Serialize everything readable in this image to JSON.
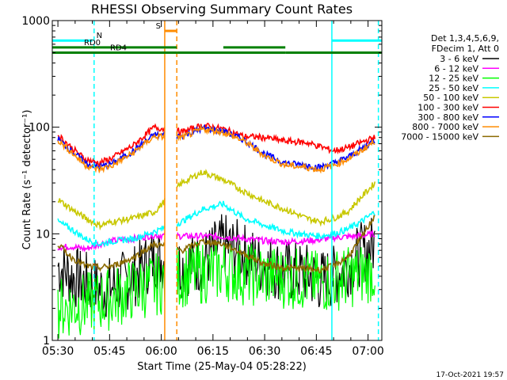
{
  "chart_data": {
    "type": "line",
    "title": "RHESSI Observing Summary Count Rates",
    "xlabel": "Start Time (25-May-04 05:28:22)",
    "ylabel": "Count Rate (s⁻¹ detector⁻¹)",
    "y_scale": "log",
    "ylim": [
      1,
      1000
    ],
    "xlim": [
      -1.63,
      94.0
    ],
    "x_units": "minutes since 05:30",
    "x_ticks": [
      {
        "value": 0,
        "label": "05:30"
      },
      {
        "value": 15,
        "label": "05:45"
      },
      {
        "value": 30,
        "label": "06:00"
      },
      {
        "value": 45,
        "label": "06:15"
      },
      {
        "value": 60,
        "label": "06:30"
      },
      {
        "value": 75,
        "label": "06:45"
      },
      {
        "value": 90,
        "label": "07:00"
      }
    ],
    "y_ticks": [
      {
        "value": 1,
        "label": "1"
      },
      {
        "value": 10,
        "label": "10"
      },
      {
        "value": 100,
        "label": "100"
      },
      {
        "value": 1000,
        "label": "1000"
      }
    ],
    "legend": {
      "position": "right",
      "header": [
        "Det 1,3,4,5,6,9,",
        "FDecim 1, Att 0"
      ]
    },
    "series": [
      {
        "name": "3 - 6 keV",
        "color": "#000000",
        "x": [
          0,
          4,
          8,
          12,
          16,
          22,
          28,
          36,
          42,
          48,
          54,
          60,
          66,
          72,
          76,
          80,
          84,
          88,
          92
        ],
        "y": [
          5,
          4,
          3.5,
          3,
          3.2,
          4,
          6,
          5,
          5.5,
          8,
          6.5,
          5,
          4.5,
          4.2,
          3.6,
          4,
          5,
          6.5,
          8
        ]
      },
      {
        "name": "6 - 12 keV",
        "color": "#ff00ff",
        "x": [
          0,
          4,
          8,
          12,
          16,
          22,
          28,
          36,
          42,
          48,
          54,
          60,
          66,
          72,
          76,
          80,
          84,
          88,
          92
        ],
        "y": [
          7.5,
          7.6,
          7.2,
          8,
          8.6,
          9,
          9.7,
          9.5,
          9.5,
          9.4,
          9,
          8.6,
          8.4,
          8.6,
          8.8,
          9.2,
          9.4,
          9.6,
          10
        ]
      },
      {
        "name": "12 - 25 keV",
        "color": "#00ff00",
        "x": [
          0,
          4,
          8,
          12,
          16,
          22,
          28,
          36,
          42,
          48,
          54,
          60,
          66,
          72,
          76,
          80,
          84,
          88,
          92
        ],
        "y": [
          2,
          2.1,
          2.2,
          2.3,
          2.5,
          3,
          3.3,
          4,
          4.3,
          4.6,
          4.2,
          4,
          3.9,
          3.7,
          3.5,
          3.7,
          3.9,
          4.2,
          4.5
        ]
      },
      {
        "name": "25 - 50 keV",
        "color": "#00ffff",
        "x": [
          0,
          4,
          8,
          12,
          16,
          22,
          28,
          36,
          42,
          48,
          54,
          60,
          66,
          72,
          76,
          80,
          84,
          88,
          92
        ],
        "y": [
          13,
          11,
          9,
          8,
          8.5,
          9,
          10.5,
          13,
          17,
          19,
          14,
          12,
          10.5,
          9.8,
          9.5,
          10,
          11,
          13,
          16
        ]
      },
      {
        "name": "50 - 100 keV",
        "color": "#c8c800",
        "x": [
          0,
          4,
          8,
          12,
          16,
          22,
          28,
          36,
          42,
          48,
          54,
          60,
          66,
          72,
          76,
          80,
          84,
          88,
          92
        ],
        "y": [
          21,
          17,
          14,
          12,
          13,
          14,
          16,
          30,
          38,
          32,
          25,
          20,
          17,
          14,
          13,
          14,
          16,
          22,
          30
        ]
      },
      {
        "name": "100 - 300 keV",
        "color": "#ff0000",
        "x": [
          0,
          4,
          8,
          12,
          16,
          22,
          28,
          36,
          42,
          48,
          54,
          60,
          66,
          72,
          76,
          80,
          84,
          88,
          92
        ],
        "y": [
          85,
          64,
          50,
          46,
          52,
          68,
          100,
          90,
          104,
          96,
          82,
          80,
          74,
          72,
          66,
          60,
          64,
          72,
          80
        ]
      },
      {
        "name": "300 - 800 keV",
        "color": "#0000ff",
        "x": [
          0,
          4,
          8,
          12,
          16,
          22,
          28,
          36,
          42,
          48,
          54,
          60,
          66,
          72,
          76,
          80,
          84,
          88,
          92
        ],
        "y": [
          78,
          60,
          46,
          42,
          46,
          60,
          85,
          82,
          98,
          92,
          76,
          56,
          46,
          44,
          42,
          46,
          52,
          62,
          76
        ]
      },
      {
        "name": "800 - 7000 keV",
        "color": "#ff8c00",
        "x": [
          0,
          4,
          8,
          12,
          16,
          22,
          28,
          36,
          42,
          48,
          54,
          60,
          66,
          72,
          76,
          80,
          84,
          88,
          92
        ],
        "y": [
          76,
          58,
          44,
          40,
          44,
          58,
          82,
          80,
          96,
          90,
          74,
          54,
          44,
          42,
          40,
          44,
          50,
          60,
          74
        ]
      },
      {
        "name": "7000 - 15000 keV",
        "color": "#8b6a00",
        "x": [
          0,
          4,
          8,
          12,
          16,
          22,
          28,
          36,
          42,
          48,
          54,
          60,
          66,
          72,
          76,
          80,
          84,
          88,
          92
        ],
        "y": [
          8,
          6,
          5,
          4.8,
          5,
          6,
          8,
          7,
          8.5,
          8,
          6.5,
          5.2,
          4.8,
          4.7,
          4.6,
          5,
          6,
          9,
          15
        ]
      }
    ],
    "annotations": {
      "flags": [
        {
          "label": "N",
          "color": "#00ffff",
          "x_start": -1.63,
          "x_end": 10,
          "y": 650
        },
        {
          "label": "N",
          "color": "#00ffff",
          "x_start": 79.5,
          "x_end": 94,
          "y": 650
        },
        {
          "label": "RD0",
          "color": "#008000",
          "x_start": -1.63,
          "x_end": 34.5,
          "y": 560
        },
        {
          "label": "RD0",
          "color": "#008000",
          "x_start": 48,
          "x_end": 66,
          "y": 560
        },
        {
          "label": "RD4",
          "color": "#008000",
          "x_start": -1.63,
          "x_end": 34.5,
          "y": 500
        },
        {
          "label": "RD4",
          "color": "#008000",
          "x_start": 34.5,
          "x_end": 66,
          "y": 500
        },
        {
          "label": "RD4",
          "color": "#008000",
          "x_start": 66,
          "x_end": 94,
          "y": 500
        },
        {
          "label": "S",
          "color": "#ff8c00",
          "x_start": 31,
          "x_end": 34.5,
          "y": 800
        }
      ],
      "vlines": [
        {
          "x": 10.5,
          "color": "#00ffff",
          "dash": true
        },
        {
          "x": 31.0,
          "color": "#ff8c00",
          "dash": false
        },
        {
          "x": 34.5,
          "color": "#ff8c00",
          "dash": true
        },
        {
          "x": 79.5,
          "color": "#00ffff",
          "dash": false
        },
        {
          "x": 93.0,
          "color": "#00ffff",
          "dash": true
        }
      ]
    },
    "footer_date": "17-Oct-2021 19:57"
  }
}
